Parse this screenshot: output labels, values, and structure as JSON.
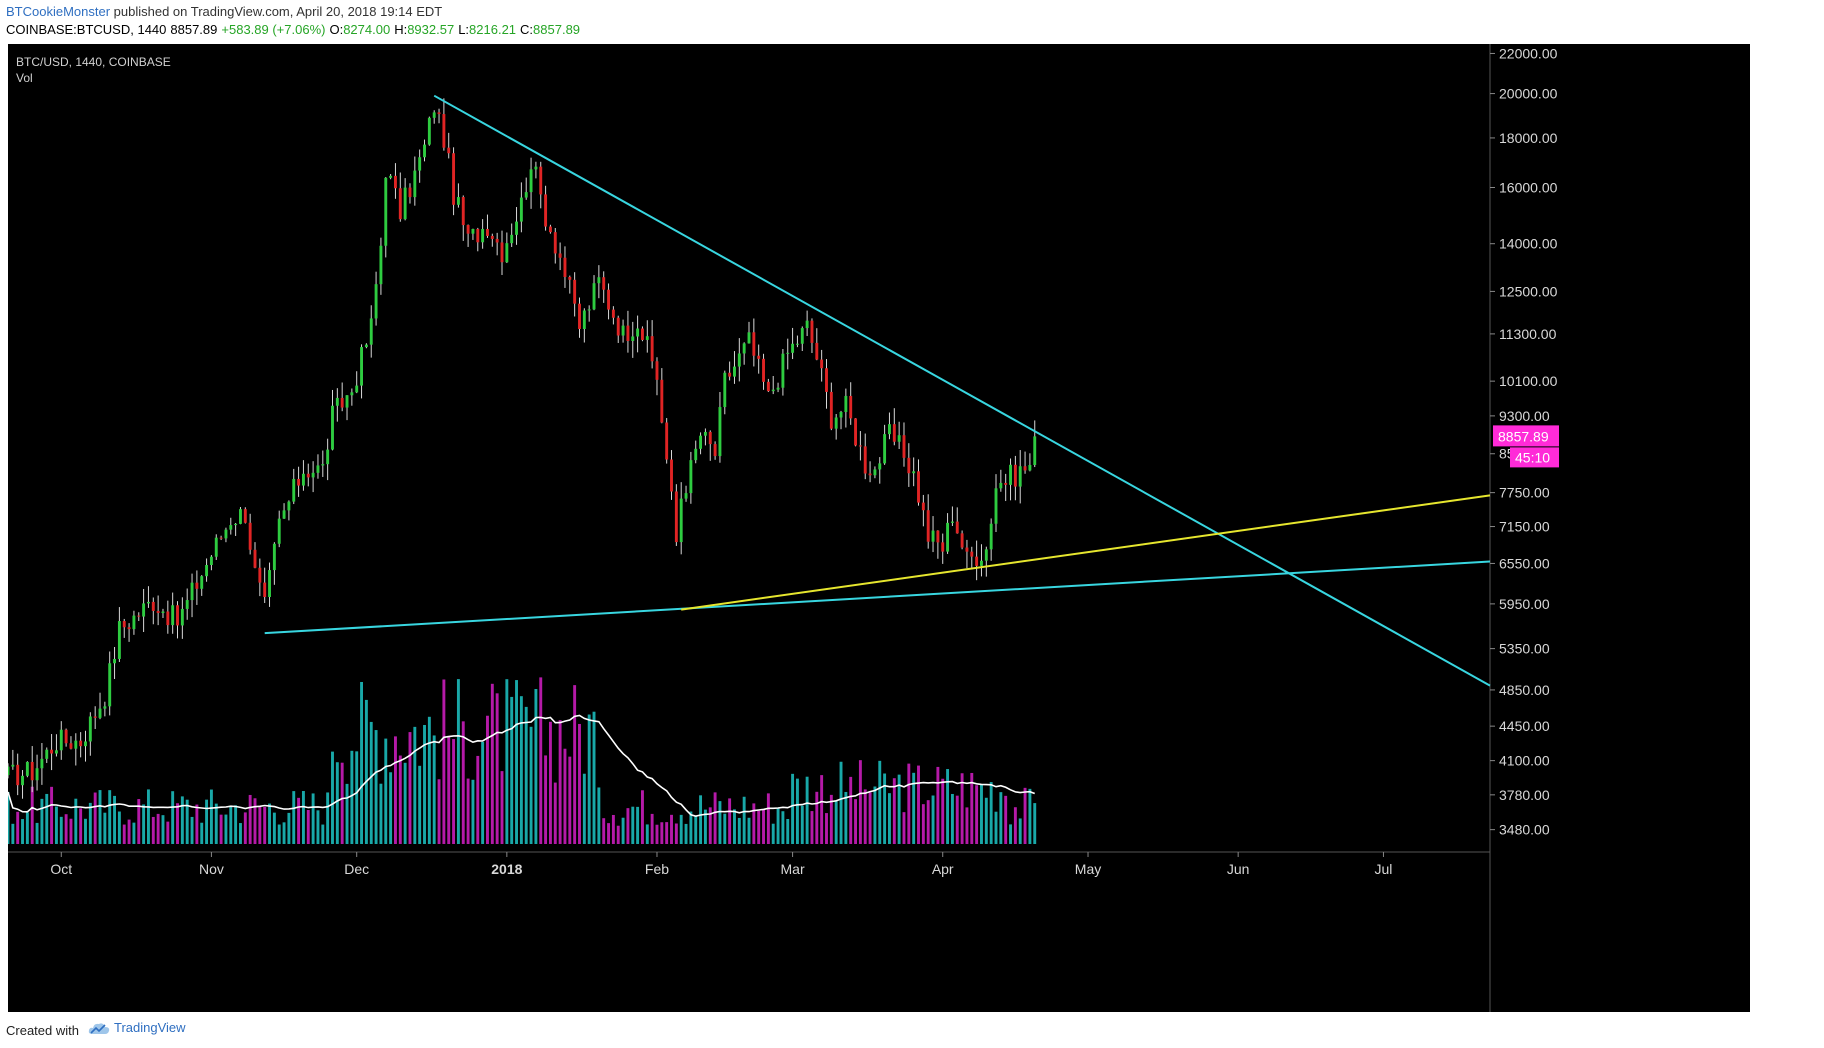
{
  "header": {
    "author": "BTCookieMonster",
    "published_text": " published on TradingView.com, April 20, 2018 19:14 EDT",
    "symbol": "COINBASE:BTCUSD, 1440",
    "last": "8857.89",
    "change": "+583.89 (+7.06%)",
    "open_label": "O:",
    "open": "8274.00",
    "high_label": "H:",
    "high": "8932.57",
    "low_label": "L:",
    "low": "8216.21",
    "close_label": "C:",
    "close": "8857.89"
  },
  "legend": {
    "symbol": "BTC/USD, 1440, COINBASE",
    "volume": "Vol"
  },
  "footer": {
    "created_with": "Created with",
    "brand": "TradingView"
  },
  "colors": {
    "background": "#000000",
    "up_candle": "#2ecc40",
    "down_candle": "#e02424",
    "up_volume": "#19a8a8",
    "down_volume": "#b51aa8",
    "trendline_cyan": "#38d6e0",
    "trendline_yellow": "#e6e62e",
    "volume_ma": "#ffffff",
    "price_badge": "#ff2bd8"
  },
  "chart_data": {
    "type": "candlestick",
    "scale": "log",
    "title": "BTC/USD, 1440, COINBASE",
    "ylim": [
      3300,
      22500
    ],
    "y_ticks": [
      "22000.00",
      "20000.00",
      "18000.00",
      "16000.00",
      "14000.00",
      "12500.00",
      "11300.00",
      "10100.00",
      "9300.00",
      "8500.00",
      "7750.00",
      "7150.00",
      "6550.00",
      "5950.00",
      "5350.00",
      "4850.00",
      "4450.00",
      "4100.00",
      "3780.00",
      "3480.00"
    ],
    "x_range": [
      "2017-09-20",
      "2018-07-23"
    ],
    "x_ticks": [
      {
        "label": "Oct",
        "date": "2017-10-01",
        "bold": false
      },
      {
        "label": "Nov",
        "date": "2017-11-01",
        "bold": false
      },
      {
        "label": "Dec",
        "date": "2017-12-01",
        "bold": false
      },
      {
        "label": "2018",
        "date": "2018-01-01",
        "bold": true
      },
      {
        "label": "Feb",
        "date": "2018-02-01",
        "bold": false
      },
      {
        "label": "Mar",
        "date": "2018-03-01",
        "bold": false
      },
      {
        "label": "Apr",
        "date": "2018-04-01",
        "bold": false
      },
      {
        "label": "May",
        "date": "2018-05-01",
        "bold": false
      },
      {
        "label": "Jun",
        "date": "2018-06-01",
        "bold": false
      },
      {
        "label": "Jul",
        "date": "2018-07-01",
        "bold": false
      }
    ],
    "close_anchors": [
      [
        "2017-09-20",
        3950
      ],
      [
        "2017-09-25",
        4000
      ],
      [
        "2017-09-30",
        4300
      ],
      [
        "2017-10-05",
        4300
      ],
      [
        "2017-10-10",
        4800
      ],
      [
        "2017-10-13",
        5600
      ],
      [
        "2017-10-20",
        6000
      ],
      [
        "2017-10-25",
        5700
      ],
      [
        "2017-11-01",
        6700
      ],
      [
        "2017-11-05",
        7300
      ],
      [
        "2017-11-08",
        7400
      ],
      [
        "2017-11-10",
        6400
      ],
      [
        "2017-11-12",
        5900
      ],
      [
        "2017-11-15",
        7200
      ],
      [
        "2017-11-20",
        8200
      ],
      [
        "2017-11-24",
        8200
      ],
      [
        "2017-11-26",
        9300
      ],
      [
        "2017-11-30",
        9900
      ],
      [
        "2017-12-04",
        11500
      ],
      [
        "2017-12-06",
        14000
      ],
      [
        "2017-12-07",
        16800
      ],
      [
        "2017-12-10",
        15100
      ],
      [
        "2017-12-13",
        16500
      ],
      [
        "2017-12-15",
        17600
      ],
      [
        "2017-12-17",
        19500
      ],
      [
        "2017-12-19",
        18000
      ],
      [
        "2017-12-21",
        15800
      ],
      [
        "2017-12-24",
        14100
      ],
      [
        "2017-12-28",
        14700
      ],
      [
        "2017-12-31",
        13800
      ],
      [
        "2018-01-04",
        15400
      ],
      [
        "2018-01-06",
        17100
      ],
      [
        "2018-01-09",
        15000
      ],
      [
        "2018-01-12",
        13600
      ],
      [
        "2018-01-16",
        11500
      ],
      [
        "2018-01-20",
        12800
      ],
      [
        "2018-01-25",
        11300
      ],
      [
        "2018-01-28",
        11700
      ],
      [
        "2018-02-01",
        10200
      ],
      [
        "2018-02-05",
        6900
      ],
      [
        "2018-02-06",
        7700
      ],
      [
        "2018-02-08",
        8200
      ],
      [
        "2018-02-10",
        8900
      ],
      [
        "2018-02-13",
        8500
      ],
      [
        "2018-02-15",
        10100
      ],
      [
        "2018-02-20",
        11100
      ],
      [
        "2018-02-24",
        9700
      ],
      [
        "2018-02-28",
        10800
      ],
      [
        "2018-03-04",
        11500
      ],
      [
        "2018-03-06",
        10700
      ],
      [
        "2018-03-09",
        9300
      ],
      [
        "2018-03-12",
        9500
      ],
      [
        "2018-03-16",
        8300
      ],
      [
        "2018-03-18",
        8200
      ],
      [
        "2018-03-21",
        8900
      ],
      [
        "2018-03-24",
        8500
      ],
      [
        "2018-03-26",
        8100
      ],
      [
        "2018-03-29",
        7000
      ],
      [
        "2018-04-01",
        6800
      ],
      [
        "2018-04-03",
        7400
      ],
      [
        "2018-04-06",
        6600
      ],
      [
        "2018-04-10",
        6800
      ],
      [
        "2018-04-12",
        7900
      ],
      [
        "2018-04-16",
        8100
      ],
      [
        "2018-04-19",
        8274
      ],
      [
        "2018-04-20",
        8857.89
      ]
    ],
    "volume_style": "relative histogram with moving average",
    "trendlines": [
      {
        "color": "cyan",
        "from": [
          "2017-12-17",
          19900
        ],
        "to": [
          "2018-07-23",
          4900
        ]
      },
      {
        "color": "cyan",
        "from": [
          "2017-11-12",
          5550
        ],
        "to": [
          "2018-07-23",
          6580
        ]
      },
      {
        "color": "yellow",
        "from": [
          "2018-02-06",
          5870
        ],
        "to": [
          "2018-07-23",
          7700
        ]
      }
    ],
    "last_price_label": "8857.89",
    "countdown_label": "45:10"
  }
}
